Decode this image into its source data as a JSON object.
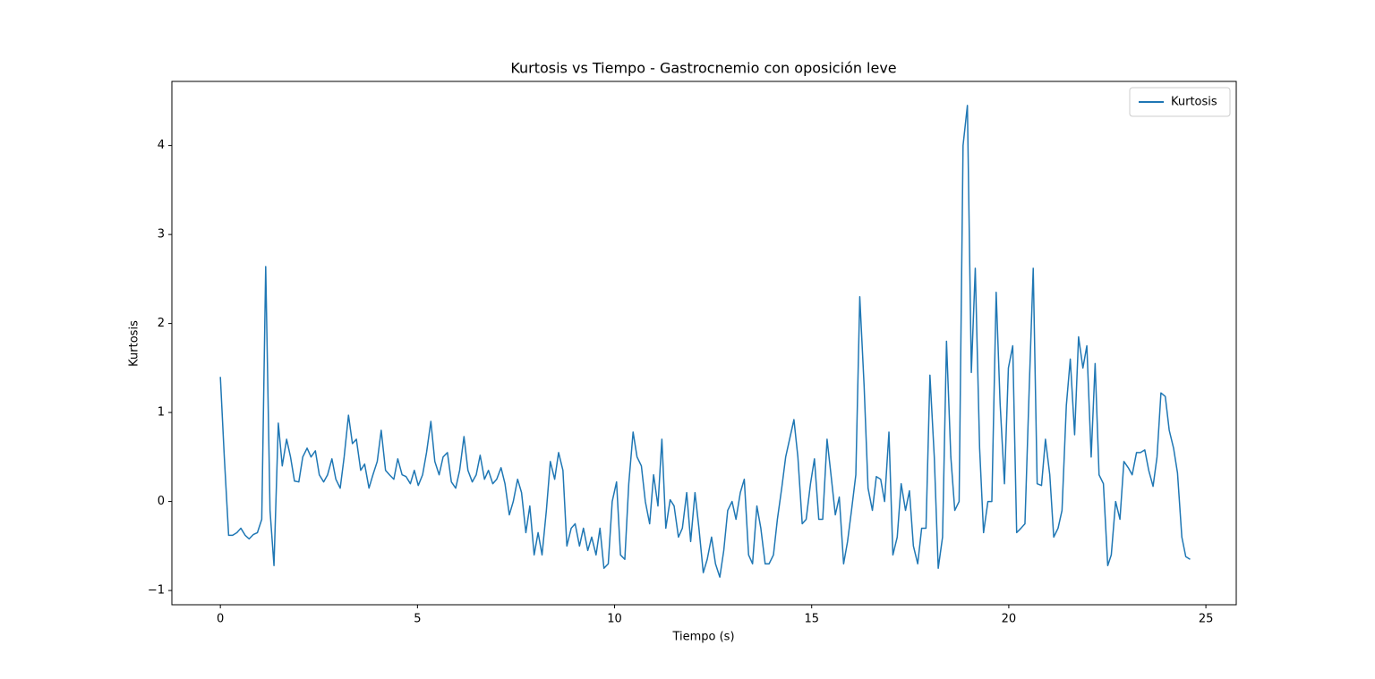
{
  "chart_data": {
    "type": "line",
    "title": "Kurtosis vs Tiempo - Gastrocnemio con oposición leve",
    "x_label": "Tiempo (s)",
    "y_label": "Kurtosis",
    "x": [
      0,
      0.1,
      0.21,
      0.31,
      0.42,
      0.52,
      0.63,
      0.73,
      0.84,
      0.94,
      1.05,
      1.15,
      1.26,
      1.36,
      1.47,
      1.57,
      1.68,
      1.78,
      1.88,
      1.99,
      2.09,
      2.2,
      2.3,
      2.41,
      2.51,
      2.62,
      2.72,
      2.83,
      2.93,
      3.04,
      3.14,
      3.25,
      3.35,
      3.45,
      3.56,
      3.66,
      3.77,
      3.87,
      3.98,
      4.08,
      4.19,
      4.29,
      4.4,
      4.5,
      4.61,
      4.71,
      4.82,
      4.92,
      5.02,
      5.13,
      5.23,
      5.34,
      5.44,
      5.55,
      5.65,
      5.76,
      5.86,
      5.97,
      6.07,
      6.18,
      6.28,
      6.39,
      6.49,
      6.59,
      6.7,
      6.8,
      6.91,
      7.01,
      7.12,
      7.22,
      7.33,
      7.43,
      7.54,
      7.64,
      7.75,
      7.85,
      7.96,
      8.06,
      8.16,
      8.27,
      8.37,
      8.48,
      8.58,
      8.69,
      8.79,
      8.9,
      9.0,
      9.11,
      9.21,
      9.32,
      9.42,
      9.53,
      9.63,
      9.73,
      9.84,
      9.94,
      10.05,
      10.15,
      10.26,
      10.36,
      10.47,
      10.57,
      10.68,
      10.78,
      10.89,
      10.99,
      11.1,
      11.2,
      11.3,
      11.41,
      11.51,
      11.62,
      11.72,
      11.83,
      11.93,
      12.04,
      12.14,
      12.25,
      12.35,
      12.46,
      12.56,
      12.67,
      12.77,
      12.87,
      12.98,
      13.08,
      13.19,
      13.29,
      13.4,
      13.5,
      13.61,
      13.71,
      13.82,
      13.92,
      14.03,
      14.13,
      14.24,
      14.34,
      14.44,
      14.55,
      14.65,
      14.76,
      14.86,
      14.97,
      15.07,
      15.18,
      15.28,
      15.39,
      15.49,
      15.6,
      15.7,
      15.81,
      15.91,
      16.01,
      16.12,
      16.22,
      16.33,
      16.43,
      16.54,
      16.64,
      16.75,
      16.85,
      16.96,
      17.06,
      17.17,
      17.27,
      17.38,
      17.48,
      17.58,
      17.69,
      17.79,
      17.9,
      18.0,
      18.11,
      18.21,
      18.32,
      18.42,
      18.53,
      18.63,
      18.74,
      18.84,
      18.95,
      19.05,
      19.15,
      19.26,
      19.36,
      19.47,
      19.57,
      19.68,
      19.78,
      19.89,
      19.99,
      20.1,
      20.2,
      20.31,
      20.41,
      20.52,
      20.62,
      20.72,
      20.83,
      20.93,
      21.04,
      21.14,
      21.25,
      21.35,
      21.46,
      21.56,
      21.67,
      21.77,
      21.88,
      21.98,
      22.09,
      22.19,
      22.29,
      22.4,
      22.51,
      22.6,
      22.71,
      22.82,
      22.92,
      23.03,
      23.13,
      23.24,
      23.34,
      23.45,
      23.55,
      23.66,
      23.76,
      23.86,
      23.97,
      24.07,
      24.18,
      24.28,
      24.39,
      24.49,
      24.6
    ],
    "series": [
      {
        "name": "Kurtosis",
        "color": "#1f77b4",
        "values": [
          1.4,
          0.5,
          -0.38,
          -0.38,
          -0.35,
          -0.3,
          -0.38,
          -0.42,
          -0.37,
          -0.35,
          -0.2,
          2.64,
          -0.1,
          -0.72,
          0.88,
          0.4,
          0.7,
          0.5,
          0.23,
          0.22,
          0.5,
          0.6,
          0.5,
          0.57,
          0.3,
          0.22,
          0.3,
          0.48,
          0.25,
          0.15,
          0.5,
          0.97,
          0.65,
          0.7,
          0.35,
          0.42,
          0.15,
          0.3,
          0.45,
          0.8,
          0.35,
          0.3,
          0.25,
          0.48,
          0.3,
          0.28,
          0.2,
          0.35,
          0.18,
          0.3,
          0.55,
          0.9,
          0.45,
          0.3,
          0.5,
          0.55,
          0.22,
          0.15,
          0.35,
          0.73,
          0.35,
          0.22,
          0.3,
          0.52,
          0.25,
          0.35,
          0.2,
          0.25,
          0.38,
          0.2,
          -0.15,
          0.0,
          0.25,
          0.1,
          -0.35,
          -0.05,
          -0.6,
          -0.35,
          -0.6,
          -0.1,
          0.45,
          0.25,
          0.55,
          0.35,
          -0.5,
          -0.3,
          -0.25,
          -0.5,
          -0.3,
          -0.55,
          -0.4,
          -0.6,
          -0.3,
          -0.75,
          -0.7,
          0.0,
          0.22,
          -0.6,
          -0.65,
          0.2,
          0.78,
          0.5,
          0.4,
          0.0,
          -0.25,
          0.3,
          -0.05,
          0.7,
          -0.3,
          0.02,
          -0.05,
          -0.4,
          -0.3,
          0.1,
          -0.45,
          0.1,
          -0.3,
          -0.8,
          -0.65,
          -0.4,
          -0.7,
          -0.85,
          -0.55,
          -0.1,
          0.0,
          -0.2,
          0.1,
          0.25,
          -0.6,
          -0.7,
          -0.05,
          -0.3,
          -0.7,
          -0.7,
          -0.6,
          -0.2,
          0.15,
          0.5,
          0.7,
          0.92,
          0.5,
          -0.25,
          -0.2,
          0.2,
          0.48,
          -0.2,
          -0.2,
          0.7,
          0.3,
          -0.15,
          0.05,
          -0.7,
          -0.45,
          -0.1,
          0.3,
          2.3,
          1.3,
          0.15,
          -0.1,
          0.28,
          0.25,
          0.0,
          0.78,
          -0.6,
          -0.4,
          0.2,
          -0.1,
          0.12,
          -0.5,
          -0.7,
          -0.3,
          -0.3,
          1.42,
          0.5,
          -0.75,
          -0.4,
          1.8,
          0.5,
          -0.1,
          0.0,
          4.0,
          4.45,
          1.45,
          2.62,
          0.6,
          -0.35,
          0.0,
          0.0,
          2.35,
          1.1,
          0.2,
          1.5,
          1.75,
          -0.35,
          -0.3,
          -0.25,
          1.3,
          2.62,
          0.2,
          0.18,
          0.7,
          0.3,
          -0.4,
          -0.3,
          -0.1,
          1.08,
          1.6,
          0.75,
          1.85,
          1.5,
          1.75,
          0.5,
          1.55,
          0.3,
          0.2,
          -0.72,
          -0.6,
          0.0,
          -0.2,
          0.45,
          0.38,
          0.3,
          0.55,
          0.55,
          0.58,
          0.35,
          0.17,
          0.5,
          1.22,
          1.18,
          0.8,
          0.6,
          0.32,
          -0.4,
          -0.62,
          -0.65
        ]
      }
    ],
    "xlim": [
      -1.23,
      25.77
    ],
    "ylim": [
      -1.16,
      4.72
    ],
    "xticks": [
      0,
      5,
      10,
      15,
      20,
      25
    ],
    "yticks": [
      {
        "value": -1,
        "label": "−1"
      },
      0,
      1,
      2,
      3,
      4
    ],
    "grid": false,
    "legend": "upper right"
  }
}
